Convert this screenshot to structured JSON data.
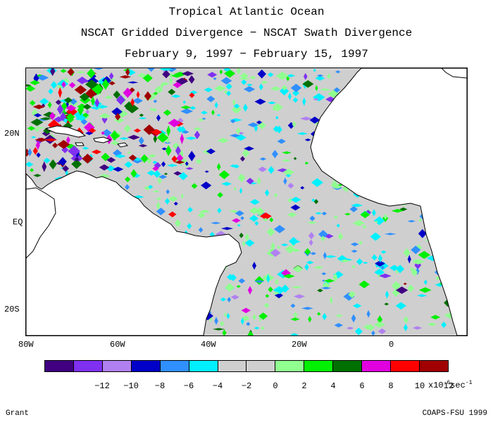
{
  "title": {
    "line1": "Tropical Atlantic Ocean",
    "line2": "NSCAT Gridded Divergence − NSCAT Swath Divergence",
    "line3": "February 9, 1997 − February 15, 1997"
  },
  "axes": {
    "lat_labels": [
      "20N",
      "EQ",
      "20S"
    ],
    "lon_labels": [
      "80W",
      "60W",
      "40W",
      "20W",
      "0"
    ]
  },
  "colorbar": {
    "colors": [
      "#400080",
      "#8030f0",
      "#b080f0",
      "#0000c8",
      "#3090ff",
      "#00f0ff",
      "#cfcfcf",
      "#cfcfcf",
      "#90ff90",
      "#00f000",
      "#007000",
      "#e000e0",
      "#ff0000",
      "#a00000"
    ],
    "labels": [
      "-12",
      "-10",
      "-8",
      "-6",
      "-4",
      "-2",
      "0",
      "2",
      "4",
      "6",
      "8",
      "10",
      "12"
    ],
    "units_prefix": "x10",
    "units_exp": "-6",
    "units_suffix": "sec",
    "units_suffix_exp": "-1"
  },
  "footer": {
    "left": "Grant",
    "right": "COAPS-FSU 1999"
  },
  "colors": {
    "land": "#ffffff",
    "ocean_zero": "#cfcfcf",
    "coast": "#000000"
  }
}
